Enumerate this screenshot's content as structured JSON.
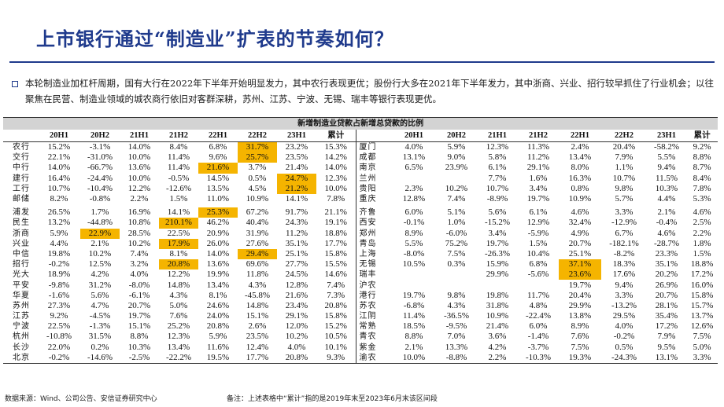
{
  "title": "上市银行通过“制造业”扩表的节奏如何？",
  "intro": "本轮制造业加杠杆周期，国有大行在2022年下半年开始明显发力，其中农行表现更优；股份行大多在2021年下半年发力，其中浙商、兴业、招行较早抓住了行业机会；以往聚焦在民营、制造业领域的城农商行依旧对客群深耕，苏州、江苏、宁波、无锡、瑞丰等银行表现更优。",
  "table": {
    "caption": "新增制造业贷款占新增总贷款的比例",
    "columns": [
      "20H1",
      "20H2",
      "21H1",
      "21H2",
      "22H1",
      "22H2",
      "23H1",
      "累计"
    ],
    "highlight_color": "#f5b400",
    "left_groups": [
      {
        "rows": [
          {
            "name": "农行",
            "values": [
              "15.2%",
              "-3.1%",
              "14.0%",
              "8.4%",
              "6.8%",
              "31.7%",
              "23.2%",
              "15.3%"
            ],
            "hl": [
              5
            ]
          },
          {
            "name": "交行",
            "values": [
              "22.1%",
              "-31.0%",
              "10.0%",
              "11.4%",
              "9.6%",
              "25.7%",
              "23.5%",
              "14.2%"
            ],
            "hl": [
              5
            ]
          },
          {
            "name": "中行",
            "values": [
              "14.0%",
              "-66.7%",
              "13.6%",
              "11.4%",
              "21.6%",
              "3.7%",
              "21.4%",
              "14.0%"
            ],
            "hl": [
              4
            ]
          },
          {
            "name": "建行",
            "values": [
              "16.4%",
              "-24.4%",
              "10.0%",
              "-0.5%",
              "14.5%",
              "0.5%",
              "24.7%",
              "12.3%"
            ],
            "hl": [
              6
            ]
          },
          {
            "name": "工行",
            "values": [
              "10.7%",
              "-10.4%",
              "12.2%",
              "-12.6%",
              "13.5%",
              "4.5%",
              "21.2%",
              "10.0%"
            ],
            "hl": [
              6
            ]
          },
          {
            "name": "邮储",
            "values": [
              "8.2%",
              "-0.8%",
              "2.2%",
              "1.5%",
              "11.0%",
              "10.9%",
              "14.1%",
              "7.8%"
            ],
            "hl": []
          }
        ]
      },
      {
        "rows": [
          {
            "name": "浦发",
            "values": [
              "26.5%",
              "1.7%",
              "16.9%",
              "14.1%",
              "25.3%",
              "67.2%",
              "91.7%",
              "21.1%"
            ],
            "hl": [
              4
            ]
          },
          {
            "name": "民生",
            "values": [
              "13.2%",
              "-44.8%",
              "10.8%",
              "210.1%",
              "46.2%",
              "40.4%",
              "24.3%",
              "19.1%"
            ],
            "hl": [
              3
            ]
          },
          {
            "name": "浙商",
            "values": [
              "5.9%",
              "22.9%",
              "28.5%",
              "22.5%",
              "20.9%",
              "31.9%",
              "11.2%",
              "18.8%"
            ],
            "hl": [
              1
            ]
          },
          {
            "name": "兴业",
            "values": [
              "4.4%",
              "2.1%",
              "10.2%",
              "17.9%",
              "26.0%",
              "27.6%",
              "35.1%",
              "17.7%"
            ],
            "hl": [
              3
            ]
          },
          {
            "name": "中信",
            "values": [
              "19.8%",
              "10.2%",
              "7.4%",
              "8.1%",
              "14.0%",
              "29.4%",
              "25.1%",
              "15.8%"
            ],
            "hl": [
              5
            ]
          },
          {
            "name": "招行",
            "values": [
              "-0.2%",
              "12.5%",
              "3.2%",
              "20.8%",
              "13.6%",
              "69.6%",
              "27.7%",
              "15.5%"
            ],
            "hl": [
              3
            ]
          },
          {
            "name": "光大",
            "values": [
              "18.9%",
              "4.2%",
              "4.0%",
              "12.2%",
              "19.9%",
              "11.8%",
              "24.5%",
              "14.6%"
            ],
            "hl": []
          },
          {
            "name": "平安",
            "values": [
              "-9.8%",
              "31.2%",
              "-8.0%",
              "14.8%",
              "13.4%",
              "4.3%",
              "12.8%",
              "7.4%"
            ],
            "hl": []
          },
          {
            "name": "华夏",
            "values": [
              "-1.6%",
              "5.6%",
              "-6.1%",
              "4.3%",
              "8.1%",
              "-45.8%",
              "21.6%",
              "7.3%"
            ],
            "hl": []
          },
          {
            "name": "苏州",
            "values": [
              "27.3%",
              "4.7%",
              "20.7%",
              "5.0%",
              "24.6%",
              "14.8%",
              "23.4%",
              "20.8%"
            ],
            "hl": []
          },
          {
            "name": "江苏",
            "values": [
              "9.2%",
              "-4.5%",
              "19.7%",
              "7.6%",
              "24.0%",
              "15.1%",
              "29.1%",
              "15.8%"
            ],
            "hl": []
          },
          {
            "name": "宁波",
            "values": [
              "22.5%",
              "-1.3%",
              "15.1%",
              "25.2%",
              "20.8%",
              "2.6%",
              "12.0%",
              "15.2%"
            ],
            "hl": []
          },
          {
            "name": "杭州",
            "values": [
              "-10.8%",
              "31.5%",
              "8.8%",
              "12.3%",
              "5.9%",
              "23.5%",
              "10.2%",
              "10.5%"
            ],
            "hl": []
          },
          {
            "name": "长沙",
            "values": [
              "22.0%",
              "0.2%",
              "10.3%",
              "13.4%",
              "11.6%",
              "12.4%",
              "4.0%",
              "10.1%"
            ],
            "hl": []
          },
          {
            "name": "北京",
            "values": [
              "-0.2%",
              "-14.6%",
              "-2.5%",
              "-22.2%",
              "19.5%",
              "17.7%",
              "20.8%",
              "9.3%"
            ],
            "hl": []
          }
        ]
      }
    ],
    "right_groups": [
      {
        "rows": [
          {
            "name": "厦门",
            "values": [
              "4.0%",
              "5.9%",
              "12.3%",
              "11.3%",
              "2.4%",
              "20.4%",
              "-58.2%",
              "9.2%"
            ],
            "hl": []
          },
          {
            "name": "成都",
            "values": [
              "13.1%",
              "9.0%",
              "5.8%",
              "11.2%",
              "13.4%",
              "7.9%",
              "5.5%",
              "8.8%"
            ],
            "hl": []
          },
          {
            "name": "南京",
            "values": [
              "6.5%",
              "23.9%",
              "6.1%",
              "29.1%",
              "8.0%",
              "1.1%",
              "9.4%",
              "8.7%"
            ],
            "hl": []
          },
          {
            "name": "兰州",
            "values": [
              "",
              "",
              "7.7%",
              "1.6%",
              "16.3%",
              "10.7%",
              "11.5%",
              "8.4%"
            ],
            "hl": []
          },
          {
            "name": "贵阳",
            "values": [
              "2.3%",
              "10.2%",
              "10.7%",
              "3.4%",
              "0.8%",
              "9.8%",
              "10.3%",
              "7.8%"
            ],
            "hl": []
          },
          {
            "name": "重庆",
            "values": [
              "12.8%",
              "7.4%",
              "-8.9%",
              "19.7%",
              "10.9%",
              "5.7%",
              "4.4%",
              "5.3%"
            ],
            "hl": []
          }
        ]
      },
      {
        "rows": [
          {
            "name": "齐鲁",
            "values": [
              "6.0%",
              "5.1%",
              "5.6%",
              "6.1%",
              "4.6%",
              "3.3%",
              "2.1%",
              "4.6%"
            ],
            "hl": []
          },
          {
            "name": "西安",
            "values": [
              "-0.1%",
              "1.0%",
              "-15.2%",
              "12.9%",
              "32.4%",
              "-12.9%",
              "-0.4%",
              "2.5%"
            ],
            "hl": []
          },
          {
            "name": "郑州",
            "values": [
              "8.9%",
              "-6.0%",
              "3.4%",
              "-5.9%",
              "4.9%",
              "6.7%",
              "4.6%",
              "2.2%"
            ],
            "hl": []
          },
          {
            "name": "青岛",
            "values": [
              "5.5%",
              "75.2%",
              "19.7%",
              "1.5%",
              "20.7%",
              "-182.1%",
              "-28.7%",
              "1.8%"
            ],
            "hl": []
          },
          {
            "name": "上海",
            "values": [
              "-8.0%",
              "7.5%",
              "-26.3%",
              "10.4%",
              "25.1%",
              "-8.2%",
              "23.3%",
              "1.5%"
            ],
            "hl": []
          },
          {
            "name": "无锡",
            "values": [
              "10.5%",
              "0.3%",
              "15.9%",
              "6.8%",
              "37.1%",
              "18.3%",
              "35.1%",
              "18.8%"
            ],
            "hl": [
              4
            ]
          },
          {
            "name": "瑞丰",
            "values": [
              "",
              "",
              "29.9%",
              "-5.6%",
              "23.6%",
              "17.6%",
              "20.2%",
              "17.2%"
            ],
            "hl": [
              4
            ]
          },
          {
            "name": "沪农",
            "values": [
              "",
              "",
              "",
              "",
              "19.7%",
              "9.4%",
              "26.9%",
              "16.0%"
            ],
            "hl": []
          },
          {
            "name": "港行",
            "values": [
              "19.7%",
              "9.8%",
              "19.8%",
              "11.7%",
              "20.4%",
              "3.3%",
              "20.7%",
              "15.8%"
            ],
            "hl": []
          },
          {
            "name": "苏农",
            "values": [
              "-6.8%",
              "4.3%",
              "31.8%",
              "4.8%",
              "29.9%",
              "-13.2%",
              "28.1%",
              "15.7%"
            ],
            "hl": []
          },
          {
            "name": "江阴",
            "values": [
              "11.4%",
              "-36.5%",
              "10.9%",
              "-22.4%",
              "13.8%",
              "29.5%",
              "35.4%",
              "13.7%"
            ],
            "hl": []
          },
          {
            "name": "常熟",
            "values": [
              "18.5%",
              "-9.5%",
              "21.4%",
              "6.0%",
              "8.9%",
              "4.0%",
              "17.2%",
              "12.6%"
            ],
            "hl": []
          },
          {
            "name": "青农",
            "values": [
              "8.8%",
              "7.0%",
              "3.6%",
              "-1.4%",
              "7.6%",
              "-0.2%",
              "7.9%",
              "7.5%"
            ],
            "hl": []
          },
          {
            "name": "紫金",
            "values": [
              "2.1%",
              "13.3%",
              "4.2%",
              "-3.7%",
              "7.5%",
              "0.5%",
              "9.5%",
              "5.0%"
            ],
            "hl": []
          },
          {
            "name": "渝农",
            "values": [
              "10.0%",
              "-8.8%",
              "2.2%",
              "-10.3%",
              "19.3%",
              "-24.3%",
              "13.1%",
              "3.3%"
            ],
            "hl": []
          }
        ]
      }
    ]
  },
  "source": "数据来源：Wind、公司公告、安信证券研究中心",
  "note": "备注：上述表格中“累计”指的是2019年末至2023年6月末该区间段"
}
